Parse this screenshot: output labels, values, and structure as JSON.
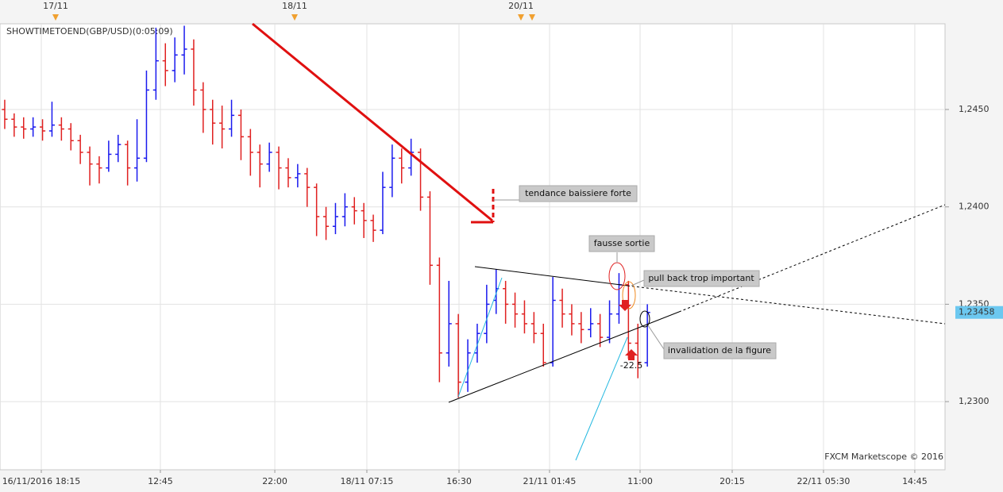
{
  "chart_data": {
    "type": "ohlc",
    "indicator_title": "SHOWTIMETOEND(GBP/USD)(0:05:09)",
    "watermark": "FXCM Marketscope © 2016",
    "top_labels": [
      "17/11",
      "18/11",
      "20/11"
    ],
    "annotations": [
      "tendance baissiere forte",
      "fausse sortie",
      "pull back trop important",
      "invalidation de la figure",
      "-22.5"
    ],
    "up_color": "#1a1aee",
    "down_color": "#e02020",
    "grid": true,
    "ylim": [
      1.2265,
      1.2494
    ],
    "yticks": [
      {
        "value": 1.23,
        "label": "1,2300"
      },
      {
        "value": 1.235,
        "label": "1,2350"
      },
      {
        "value": 1.24,
        "label": "1,2400"
      },
      {
        "value": 1.245,
        "label": "1,2450"
      }
    ],
    "last_price": {
      "value": 1.23458,
      "label": "1,23458"
    },
    "xlim": [
      0,
      100
    ],
    "xticks": [
      {
        "value": 4.37,
        "label": "16/11/2016 18:15"
      },
      {
        "value": 16.97,
        "label": "12:45"
      },
      {
        "value": 29.08,
        "label": "22:00"
      },
      {
        "value": 38.82,
        "label": "18/11 07:15"
      },
      {
        "value": 48.57,
        "label": "16:30"
      },
      {
        "value": 58.15,
        "label": "21/11 01:45"
      },
      {
        "value": 67.73,
        "label": "11:00"
      },
      {
        "value": 77.48,
        "label": "20:15"
      },
      {
        "value": 87.14,
        "label": "22/11 05:30"
      },
      {
        "value": 96.8,
        "label": "14:45"
      }
    ],
    "ohlc": [
      [
        1.245,
        1.2455,
        1.244,
        1.2445
      ],
      [
        1.2445,
        1.2448,
        1.2436,
        1.2441
      ],
      [
        1.2441,
        1.2446,
        1.2435,
        1.244
      ],
      [
        1.244,
        1.2446,
        1.2436,
        1.2441
      ],
      [
        1.2441,
        1.2445,
        1.2434,
        1.2439
      ],
      [
        1.2439,
        1.2454,
        1.2436,
        1.2442
      ],
      [
        1.2442,
        1.2446,
        1.2434,
        1.244
      ],
      [
        1.244,
        1.2443,
        1.2429,
        1.2434
      ],
      [
        1.2434,
        1.2437,
        1.2422,
        1.2428
      ],
      [
        1.2428,
        1.2431,
        1.2411,
        1.2422
      ],
      [
        1.2422,
        1.2426,
        1.2412,
        1.242
      ],
      [
        1.242,
        1.2434,
        1.2418,
        1.2427
      ],
      [
        1.2427,
        1.2437,
        1.2423,
        1.2432
      ],
      [
        1.2432,
        1.2434,
        1.2411,
        1.242
      ],
      [
        1.242,
        1.2445,
        1.2413,
        1.2425
      ],
      [
        1.2425,
        1.247,
        1.2423,
        1.246
      ],
      [
        1.246,
        1.2492,
        1.2455,
        1.2475
      ],
      [
        1.2475,
        1.2484,
        1.2462,
        1.247
      ],
      [
        1.247,
        1.2487,
        1.2464,
        1.2478
      ],
      [
        1.2478,
        1.2493,
        1.2468,
        1.2481
      ],
      [
        1.2481,
        1.2486,
        1.2452,
        1.246
      ],
      [
        1.246,
        1.2464,
        1.2438,
        1.245
      ],
      [
        1.245,
        1.2455,
        1.2432,
        1.2443
      ],
      [
        1.2443,
        1.2452,
        1.243,
        1.244
      ],
      [
        1.244,
        1.2455,
        1.2436,
        1.2447
      ],
      [
        1.2447,
        1.245,
        1.2424,
        1.2436
      ],
      [
        1.2436,
        1.244,
        1.2416,
        1.2428
      ],
      [
        1.2428,
        1.2432,
        1.241,
        1.2422
      ],
      [
        1.2422,
        1.2433,
        1.2418,
        1.2428
      ],
      [
        1.2428,
        1.2431,
        1.2409,
        1.242
      ],
      [
        1.242,
        1.2425,
        1.241,
        1.2415
      ],
      [
        1.2415,
        1.2422,
        1.241,
        1.2417
      ],
      [
        1.2417,
        1.242,
        1.24,
        1.241
      ],
      [
        1.241,
        1.2412,
        1.2385,
        1.2395
      ],
      [
        1.2395,
        1.24,
        1.2383,
        1.239
      ],
      [
        1.239,
        1.2402,
        1.2386,
        1.2395
      ],
      [
        1.2395,
        1.2407,
        1.239,
        1.24
      ],
      [
        1.24,
        1.2405,
        1.2391,
        1.2398
      ],
      [
        1.2398,
        1.2402,
        1.2384,
        1.2393
      ],
      [
        1.2393,
        1.2396,
        1.2382,
        1.2388
      ],
      [
        1.2388,
        1.2418,
        1.2386,
        1.241
      ],
      [
        1.241,
        1.2432,
        1.2405,
        1.2425
      ],
      [
        1.2425,
        1.243,
        1.2412,
        1.242
      ],
      [
        1.242,
        1.2435,
        1.2416,
        1.2428
      ],
      [
        1.2428,
        1.243,
        1.2398,
        1.2405
      ],
      [
        1.2405,
        1.2408,
        1.236,
        1.237
      ],
      [
        1.237,
        1.2374,
        1.231,
        1.2325
      ],
      [
        1.2325,
        1.2362,
        1.2318,
        1.234
      ],
      [
        1.234,
        1.2345,
        1.2302,
        1.231
      ],
      [
        1.231,
        1.2332,
        1.2305,
        1.2325
      ],
      [
        1.2325,
        1.234,
        1.232,
        1.2335
      ],
      [
        1.2335,
        1.236,
        1.233,
        1.235
      ],
      [
        1.2352,
        1.2368,
        1.2345,
        1.2358
      ],
      [
        1.2358,
        1.2362,
        1.234,
        1.235
      ],
      [
        1.235,
        1.2356,
        1.2338,
        1.2345
      ],
      [
        1.2345,
        1.2352,
        1.2335,
        1.234
      ],
      [
        1.234,
        1.2346,
        1.233,
        1.2335
      ],
      [
        1.2335,
        1.234,
        1.2318,
        1.232
      ],
      [
        1.232,
        1.2364,
        1.2318,
        1.2352
      ],
      [
        1.2352,
        1.2358,
        1.2338,
        1.2345
      ],
      [
        1.2345,
        1.235,
        1.2334,
        1.234
      ],
      [
        1.234,
        1.2346,
        1.233,
        1.2337
      ],
      [
        1.2337,
        1.2348,
        1.2333,
        1.234
      ],
      [
        1.234,
        1.2345,
        1.2328,
        1.2333
      ],
      [
        1.2333,
        1.2352,
        1.233,
        1.2345
      ],
      [
        1.2345,
        1.2366,
        1.234,
        1.236
      ],
      [
        1.236,
        1.2362,
        1.2322,
        1.233
      ],
      [
        1.233,
        1.234,
        1.2312,
        1.232
      ],
      [
        1.232,
        1.235,
        1.2318,
        1.23458
      ]
    ]
  }
}
